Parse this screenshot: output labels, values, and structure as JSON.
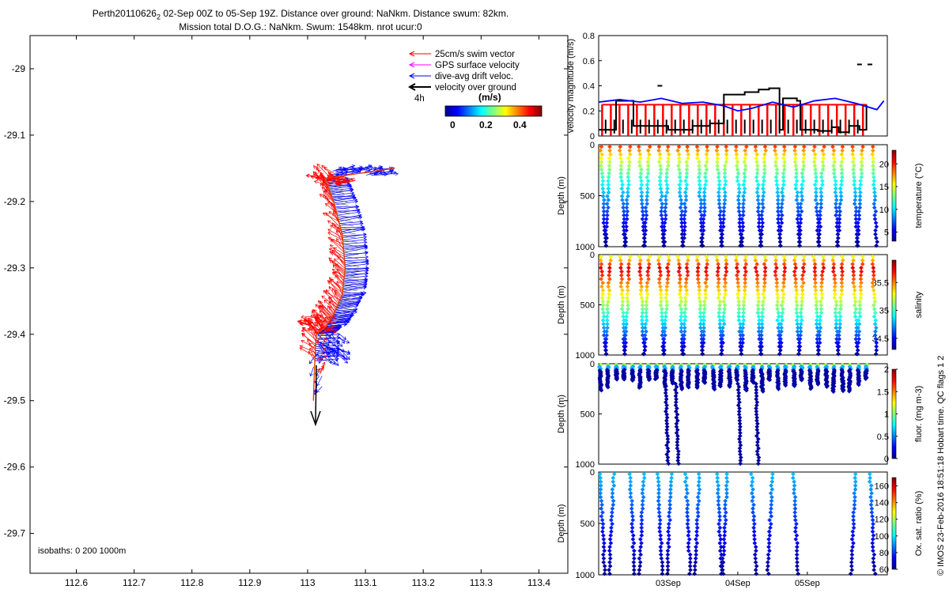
{
  "header": {
    "line1_pre": "Perth20110626",
    "line1_sub": "2",
    "line1_post": " 02-Sep 00Z to 05-Sep 19Z. Distance over ground: NaNkm. Distance swum: 82km.",
    "line2": "Mission total D.O.G.: NaNkm. Swum: 1548km. nrot ucur:0"
  },
  "side_text": "© IMOS 23-Feb-2016 18:51:18 Hobart time. QC flags 1  2",
  "colors": {
    "swim": "#ff0000",
    "gps": "#ff00ff",
    "drift": "#0000ff",
    "dog": "#000000",
    "track_line": "#e04000",
    "vel_red": "#ff0000",
    "vel_blue": "#0000ff",
    "vel_black": "#000000",
    "jet": [
      "#00008f",
      "#0000ff",
      "#007fff",
      "#00ffff",
      "#7fff7f",
      "#ffff00",
      "#ff7f00",
      "#ff0000",
      "#7f0000"
    ]
  },
  "chart_data": [
    {
      "id": "map",
      "type": "scatter",
      "title": "",
      "xlabel": "",
      "ylabel": "",
      "x_ticks": [
        "112.6",
        "112.7",
        "112.8",
        "112.9",
        "113",
        "113.1",
        "113.2",
        "113.3",
        "113.4"
      ],
      "y_ticks": [
        "-29",
        "-29.1",
        "-29.2",
        "-29.3",
        "-29.4",
        "-29.5",
        "-29.6",
        "-29.7"
      ],
      "xlim": [
        112.52,
        113.45
      ],
      "ylim": [
        -29.76,
        -28.95
      ],
      "track": [
        [
          113.15,
          -29.15
        ],
        [
          113.03,
          -29.165
        ],
        [
          113.045,
          -29.2
        ],
        [
          113.06,
          -29.25
        ],
        [
          113.065,
          -29.3
        ],
        [
          113.06,
          -29.34
        ],
        [
          113.045,
          -29.37
        ],
        [
          113.03,
          -29.39
        ],
        [
          113.015,
          -29.4
        ],
        [
          113.012,
          -29.45
        ],
        [
          113.01,
          -29.5
        ]
      ],
      "legend": {
        "items": [
          "25cm/s swim vector",
          "GPS surface velocity",
          "dive-avg drift veloc.",
          "velocity over ground"
        ],
        "scale_label": "4h",
        "colorbar_title": "(m/s)",
        "colorbar_ticks": [
          "0",
          "0.2",
          "0.4"
        ]
      },
      "isobaths_label": "isobaths: 0   200   1000m"
    },
    {
      "id": "velocity",
      "type": "line",
      "ylabel": "velocity magnitude (m/s)",
      "ylim": [
        0,
        0.8
      ],
      "y_ticks": [
        "0",
        "0.2",
        "0.4",
        "0.6",
        "0.8"
      ],
      "xlim": [
        0,
        4.15
      ],
      "series": [
        {
          "color": "blue",
          "x": [
            0,
            0.3,
            0.6,
            0.9,
            1.2,
            1.5,
            1.8,
            2.0,
            2.2,
            2.5,
            2.8,
            3.1,
            3.4,
            3.7,
            4.0,
            4.1
          ],
          "y": [
            0.27,
            0.29,
            0.27,
            0.3,
            0.26,
            0.27,
            0.24,
            0.2,
            0.22,
            0.27,
            0.23,
            0.28,
            0.3,
            0.26,
            0.21,
            0.28
          ]
        },
        {
          "color": "black",
          "x": [
            0,
            0.2,
            0.25,
            0.5,
            0.9,
            1.0,
            1.35,
            1.6,
            1.75,
            1.8,
            2.1,
            2.3,
            2.45,
            2.6,
            2.65,
            2.85,
            2.9,
            3.15,
            3.35,
            3.45,
            3.6,
            3.75,
            3.85
          ],
          "y": [
            0.05,
            0.05,
            0.28,
            0.08,
            0.08,
            0.05,
            0.08,
            0.1,
            0.1,
            0.33,
            0.35,
            0.37,
            0.38,
            0.05,
            0.3,
            0.28,
            0.05,
            0.04,
            0.07,
            0.03,
            0.08,
            0.05,
            0.25
          ]
        },
        {
          "color": "red",
          "level": 0.25,
          "spikes_per_day": 8
        }
      ],
      "points": [
        {
          "x": 3.75,
          "y": 0.57
        },
        {
          "x": 3.9,
          "y": 0.57
        },
        {
          "x": 0.88,
          "y": 0.4
        }
      ]
    },
    {
      "id": "temperature",
      "type": "scatter",
      "ylabel": "Depth (m)",
      "ylim": [
        1000,
        0
      ],
      "y_ticks": [
        "0",
        "500",
        "1000"
      ],
      "profiles": 29,
      "colorbar": {
        "label": "temperature (°C)",
        "ticks": [
          "5",
          "10",
          "15",
          "20"
        ],
        "range": [
          3,
          23
        ]
      }
    },
    {
      "id": "salinity",
      "type": "scatter",
      "ylabel": "Depth (m)",
      "ylim": [
        1000,
        0
      ],
      "y_ticks": [
        "0",
        "500",
        "1000"
      ],
      "profiles": 29,
      "colorbar": {
        "label": "salinity",
        "ticks": [
          "34.5",
          "35",
          "35.5"
        ],
        "range": [
          34.3,
          35.9
        ]
      }
    },
    {
      "id": "fluorescence",
      "type": "scatter",
      "ylabel": "Depth (m)",
      "ylim": [
        1000,
        0
      ],
      "y_ticks": [
        "0",
        "500",
        "1000"
      ],
      "colorbar": {
        "label": "fluor. (mg m-3)",
        "ticks": [
          "0",
          "0.5",
          "1",
          "1.5",
          "2"
        ],
        "range": [
          0,
          2
        ]
      }
    },
    {
      "id": "oxygen",
      "type": "scatter",
      "ylabel": "Depth (m)",
      "ylim": [
        1000,
        0
      ],
      "y_ticks": [
        "0",
        "500",
        "1000"
      ],
      "x_ticks": [
        "03Sep",
        "04Sep",
        "05Sep"
      ],
      "colorbar": {
        "label": "Ox. sat. ratio (%)",
        "ticks": [
          "60",
          "80",
          "100",
          "120",
          "140",
          "160"
        ],
        "range": [
          60,
          170
        ]
      }
    }
  ]
}
